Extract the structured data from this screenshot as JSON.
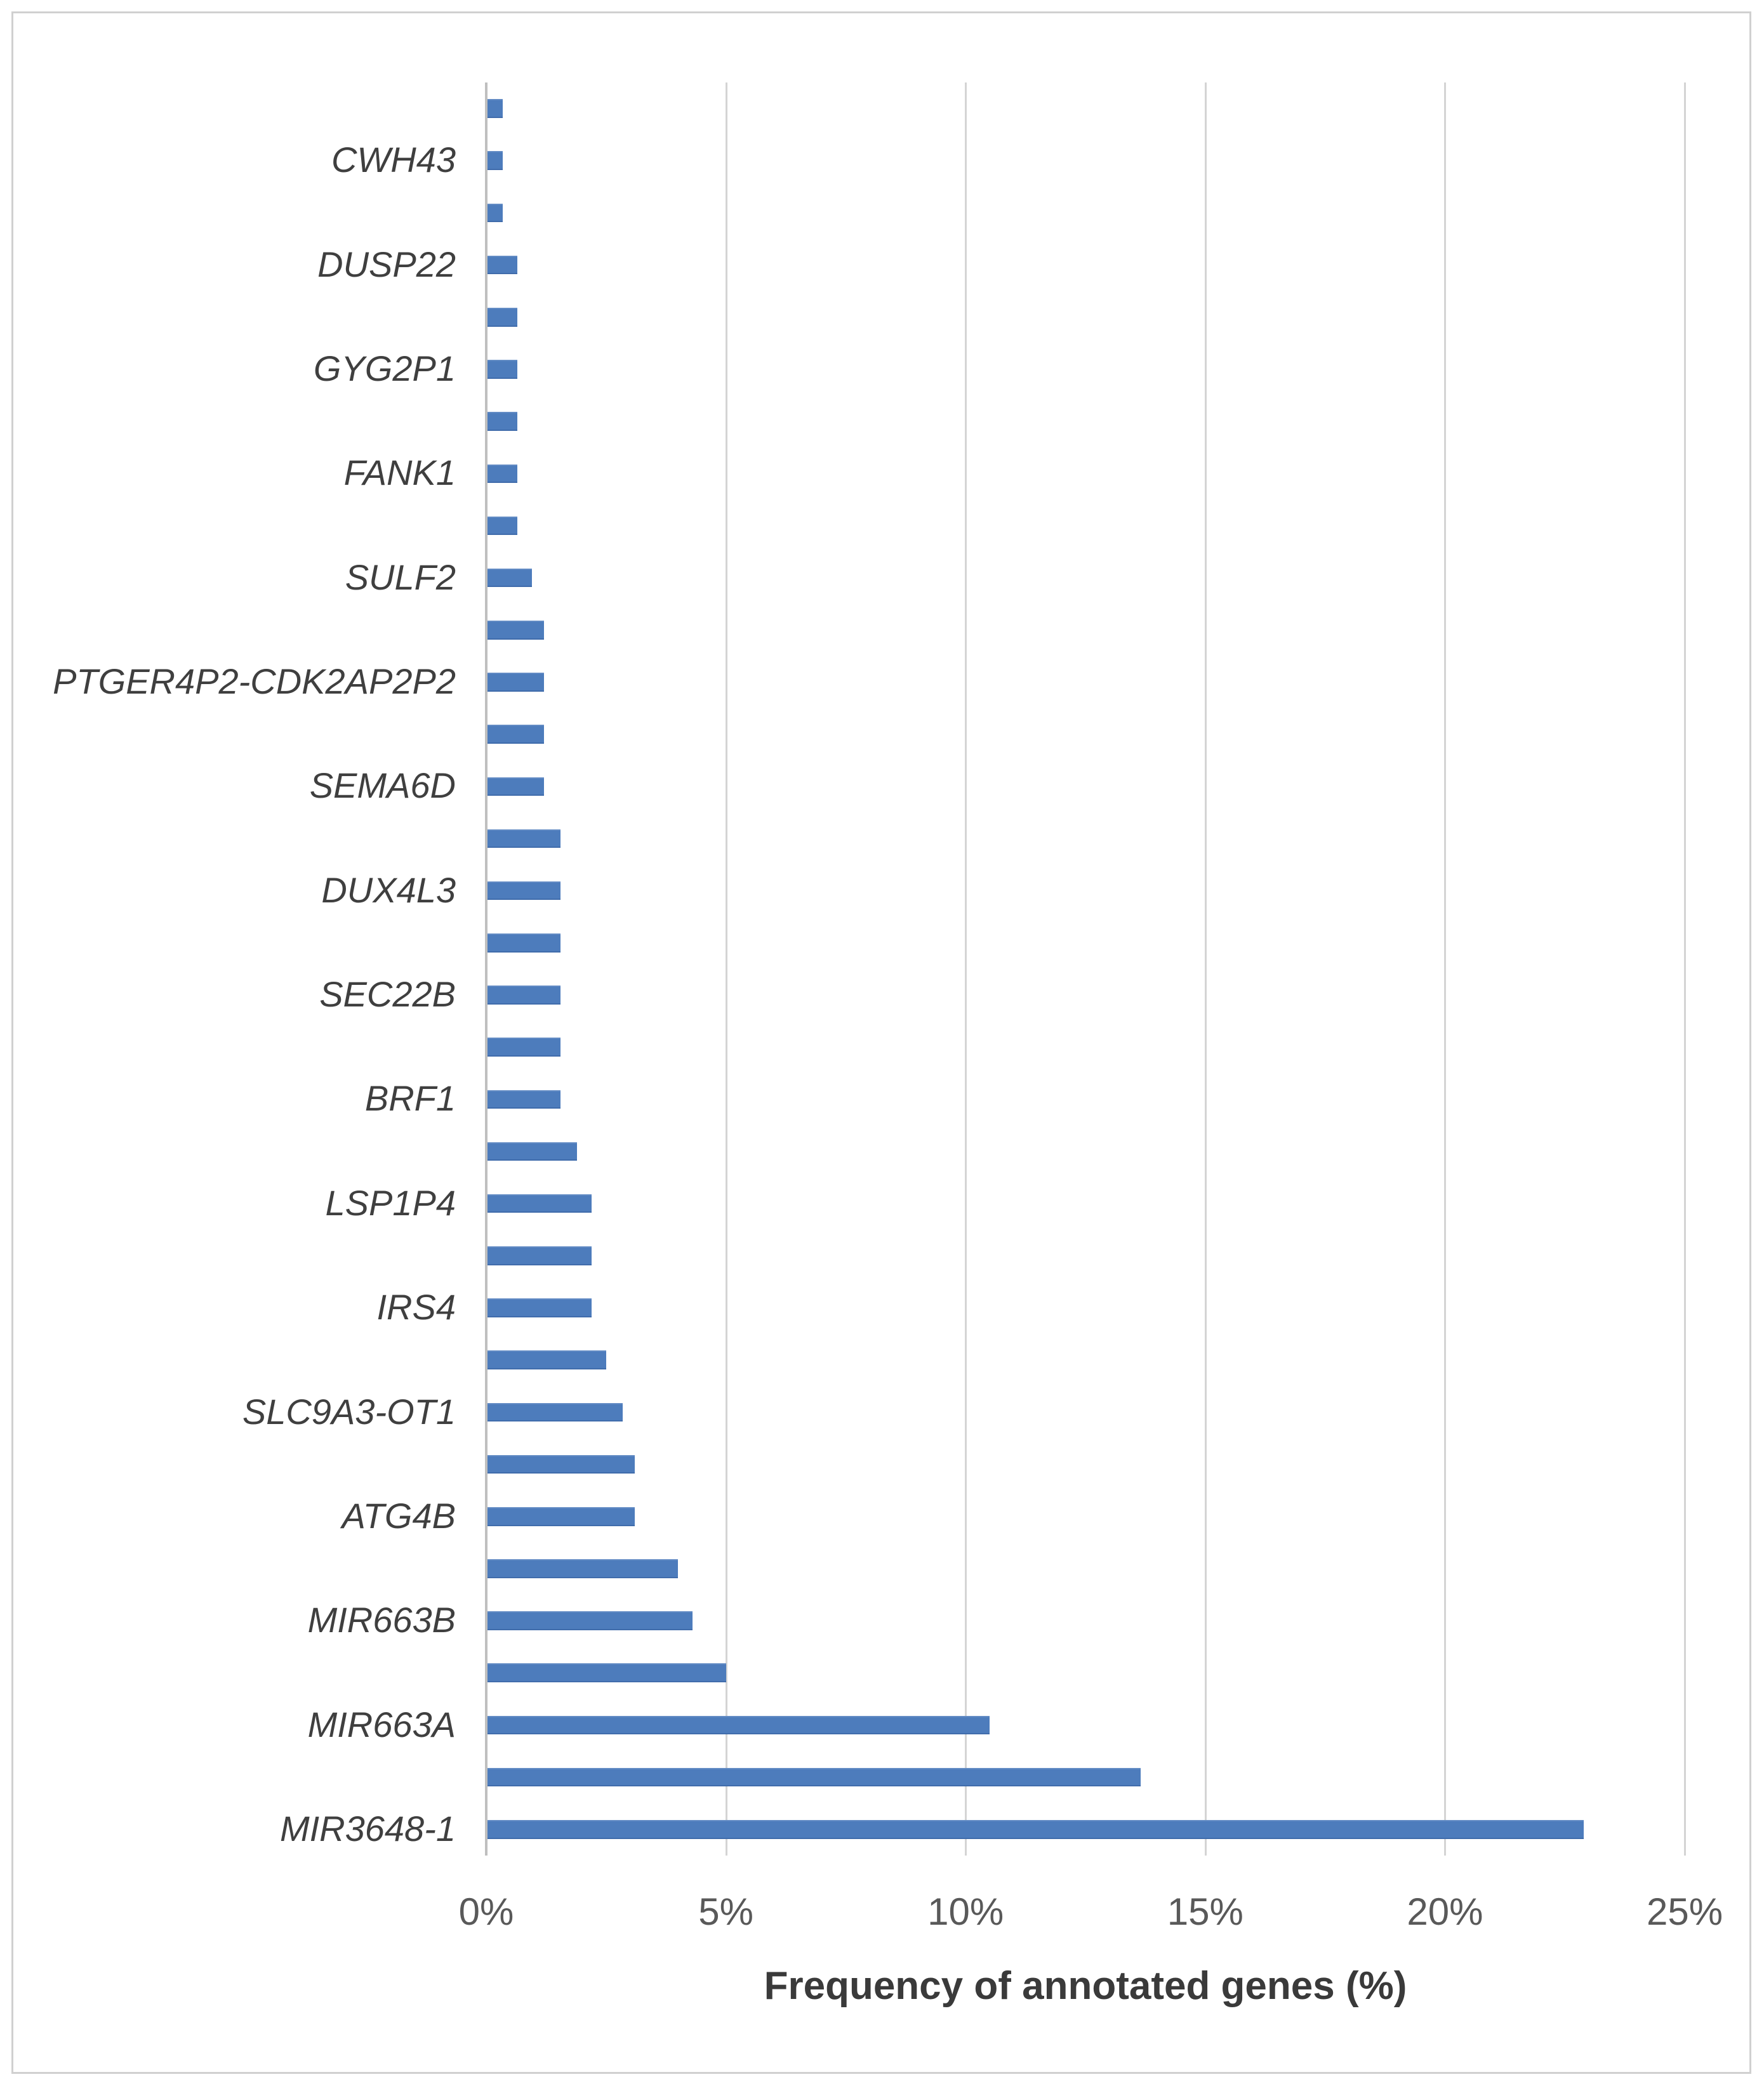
{
  "colors": {
    "bar": "#4d7cbc",
    "gridline": "#d4d4d4",
    "axis_line": "#bfbfbf",
    "frame_border": "#d0d0d0",
    "category_label": "#3f3f3f",
    "tick_label": "#595959",
    "axis_title": "#3a3a3a",
    "background": "#ffffff"
  },
  "chart_data": {
    "type": "bar",
    "orientation": "horizontal",
    "title": "",
    "xlabel": "Frequency of annotated genes (%)",
    "ylabel": "",
    "xlim": [
      0,
      25
    ],
    "x_tick_values": [
      0,
      5,
      10,
      15,
      20,
      25
    ],
    "x_ticks": [
      "0%",
      "5%",
      "10%",
      "15%",
      "20%",
      "25%"
    ],
    "grid": "vertical-major-only",
    "legend": "none",
    "bar_color": "#4d7cbc",
    "rows": [
      {
        "label": "",
        "value": 0.35
      },
      {
        "label": "CWH43",
        "value": 0.35
      },
      {
        "label": "",
        "value": 0.35
      },
      {
        "label": "DUSP22",
        "value": 0.65
      },
      {
        "label": "",
        "value": 0.65
      },
      {
        "label": "GYG2P1",
        "value": 0.65
      },
      {
        "label": "",
        "value": 0.65
      },
      {
        "label": "FANK1",
        "value": 0.65
      },
      {
        "label": "",
        "value": 0.65
      },
      {
        "label": "SULF2",
        "value": 0.95
      },
      {
        "label": "",
        "value": 1.2
      },
      {
        "label": "PTGER4P2-CDK2AP2P2",
        "value": 1.2
      },
      {
        "label": "",
        "value": 1.2
      },
      {
        "label": "SEMA6D",
        "value": 1.2
      },
      {
        "label": "",
        "value": 1.55
      },
      {
        "label": "DUX4L3",
        "value": 1.55
      },
      {
        "label": "",
        "value": 1.55
      },
      {
        "label": "SEC22B",
        "value": 1.55
      },
      {
        "label": "",
        "value": 1.55
      },
      {
        "label": "BRF1",
        "value": 1.55
      },
      {
        "label": "",
        "value": 1.9
      },
      {
        "label": "LSP1P4",
        "value": 2.2
      },
      {
        "label": "",
        "value": 2.2
      },
      {
        "label": "IRS4",
        "value": 2.2
      },
      {
        "label": "",
        "value": 2.5
      },
      {
        "label": "SLC9A3-OT1",
        "value": 2.85
      },
      {
        "label": "",
        "value": 3.1
      },
      {
        "label": "ATG4B",
        "value": 3.1
      },
      {
        "label": "",
        "value": 4.0
      },
      {
        "label": "MIR663B",
        "value": 4.3
      },
      {
        "label": "",
        "value": 5.0
      },
      {
        "label": "MIR663A",
        "value": 10.5
      },
      {
        "label": "",
        "value": 13.65
      },
      {
        "label": "MIR3648-1",
        "value": 22.9
      }
    ]
  }
}
